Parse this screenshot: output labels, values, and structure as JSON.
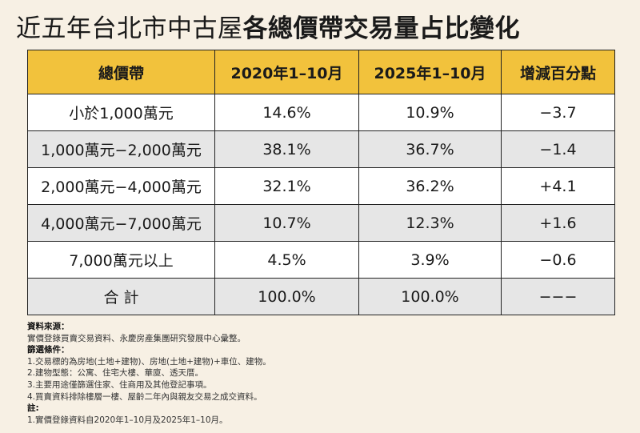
{
  "title": {
    "part1": "近五年台北市中古屋",
    "part2": "各總價帶交易量占比變化"
  },
  "chart_data": {
    "type": "table",
    "columns": [
      "總價帶",
      "2020年1–10月",
      "2025年1–10月",
      "增減百分點"
    ],
    "rows": [
      [
        "小於1,000萬元",
        "14.6%",
        "10.9%",
        "−3.7"
      ],
      [
        "1,000萬元−2,000萬元",
        "38.1%",
        "36.7%",
        "−1.4"
      ],
      [
        "2,000萬元−4,000萬元",
        "32.1%",
        "36.2%",
        "+4.1"
      ],
      [
        "4,000萬元−7,000萬元",
        "10.7%",
        "12.3%",
        "+1.6"
      ],
      [
        "7,000萬元以上",
        "4.5%",
        "3.9%",
        "−0.6"
      ],
      [
        "合 計",
        "100.0%",
        "100.0%",
        "−−−"
      ]
    ]
  },
  "notes": {
    "source_heading": "資料來源：",
    "source_text": "實價登錄買賣交易資料、永慶房產集團研究發展中心彙整。",
    "filter_heading": "篩選條件：",
    "filter_items": [
      "1.交易標的為房地(土地+建物)、房地(土地+建物)+車位、建物。",
      "2.建物型態：公寓、住宅大樓、華廈、透天厝。",
      "3.主要用途僅篩選住家、住商用及其他登記事項。",
      "4.買賣資料排除樓層一樓、屋齡二年內與親友交易之成交資料。"
    ],
    "note_heading": "註:",
    "note_items": [
      "1.實價登錄資料自2020年1–10月及2025年1–10月。"
    ]
  }
}
